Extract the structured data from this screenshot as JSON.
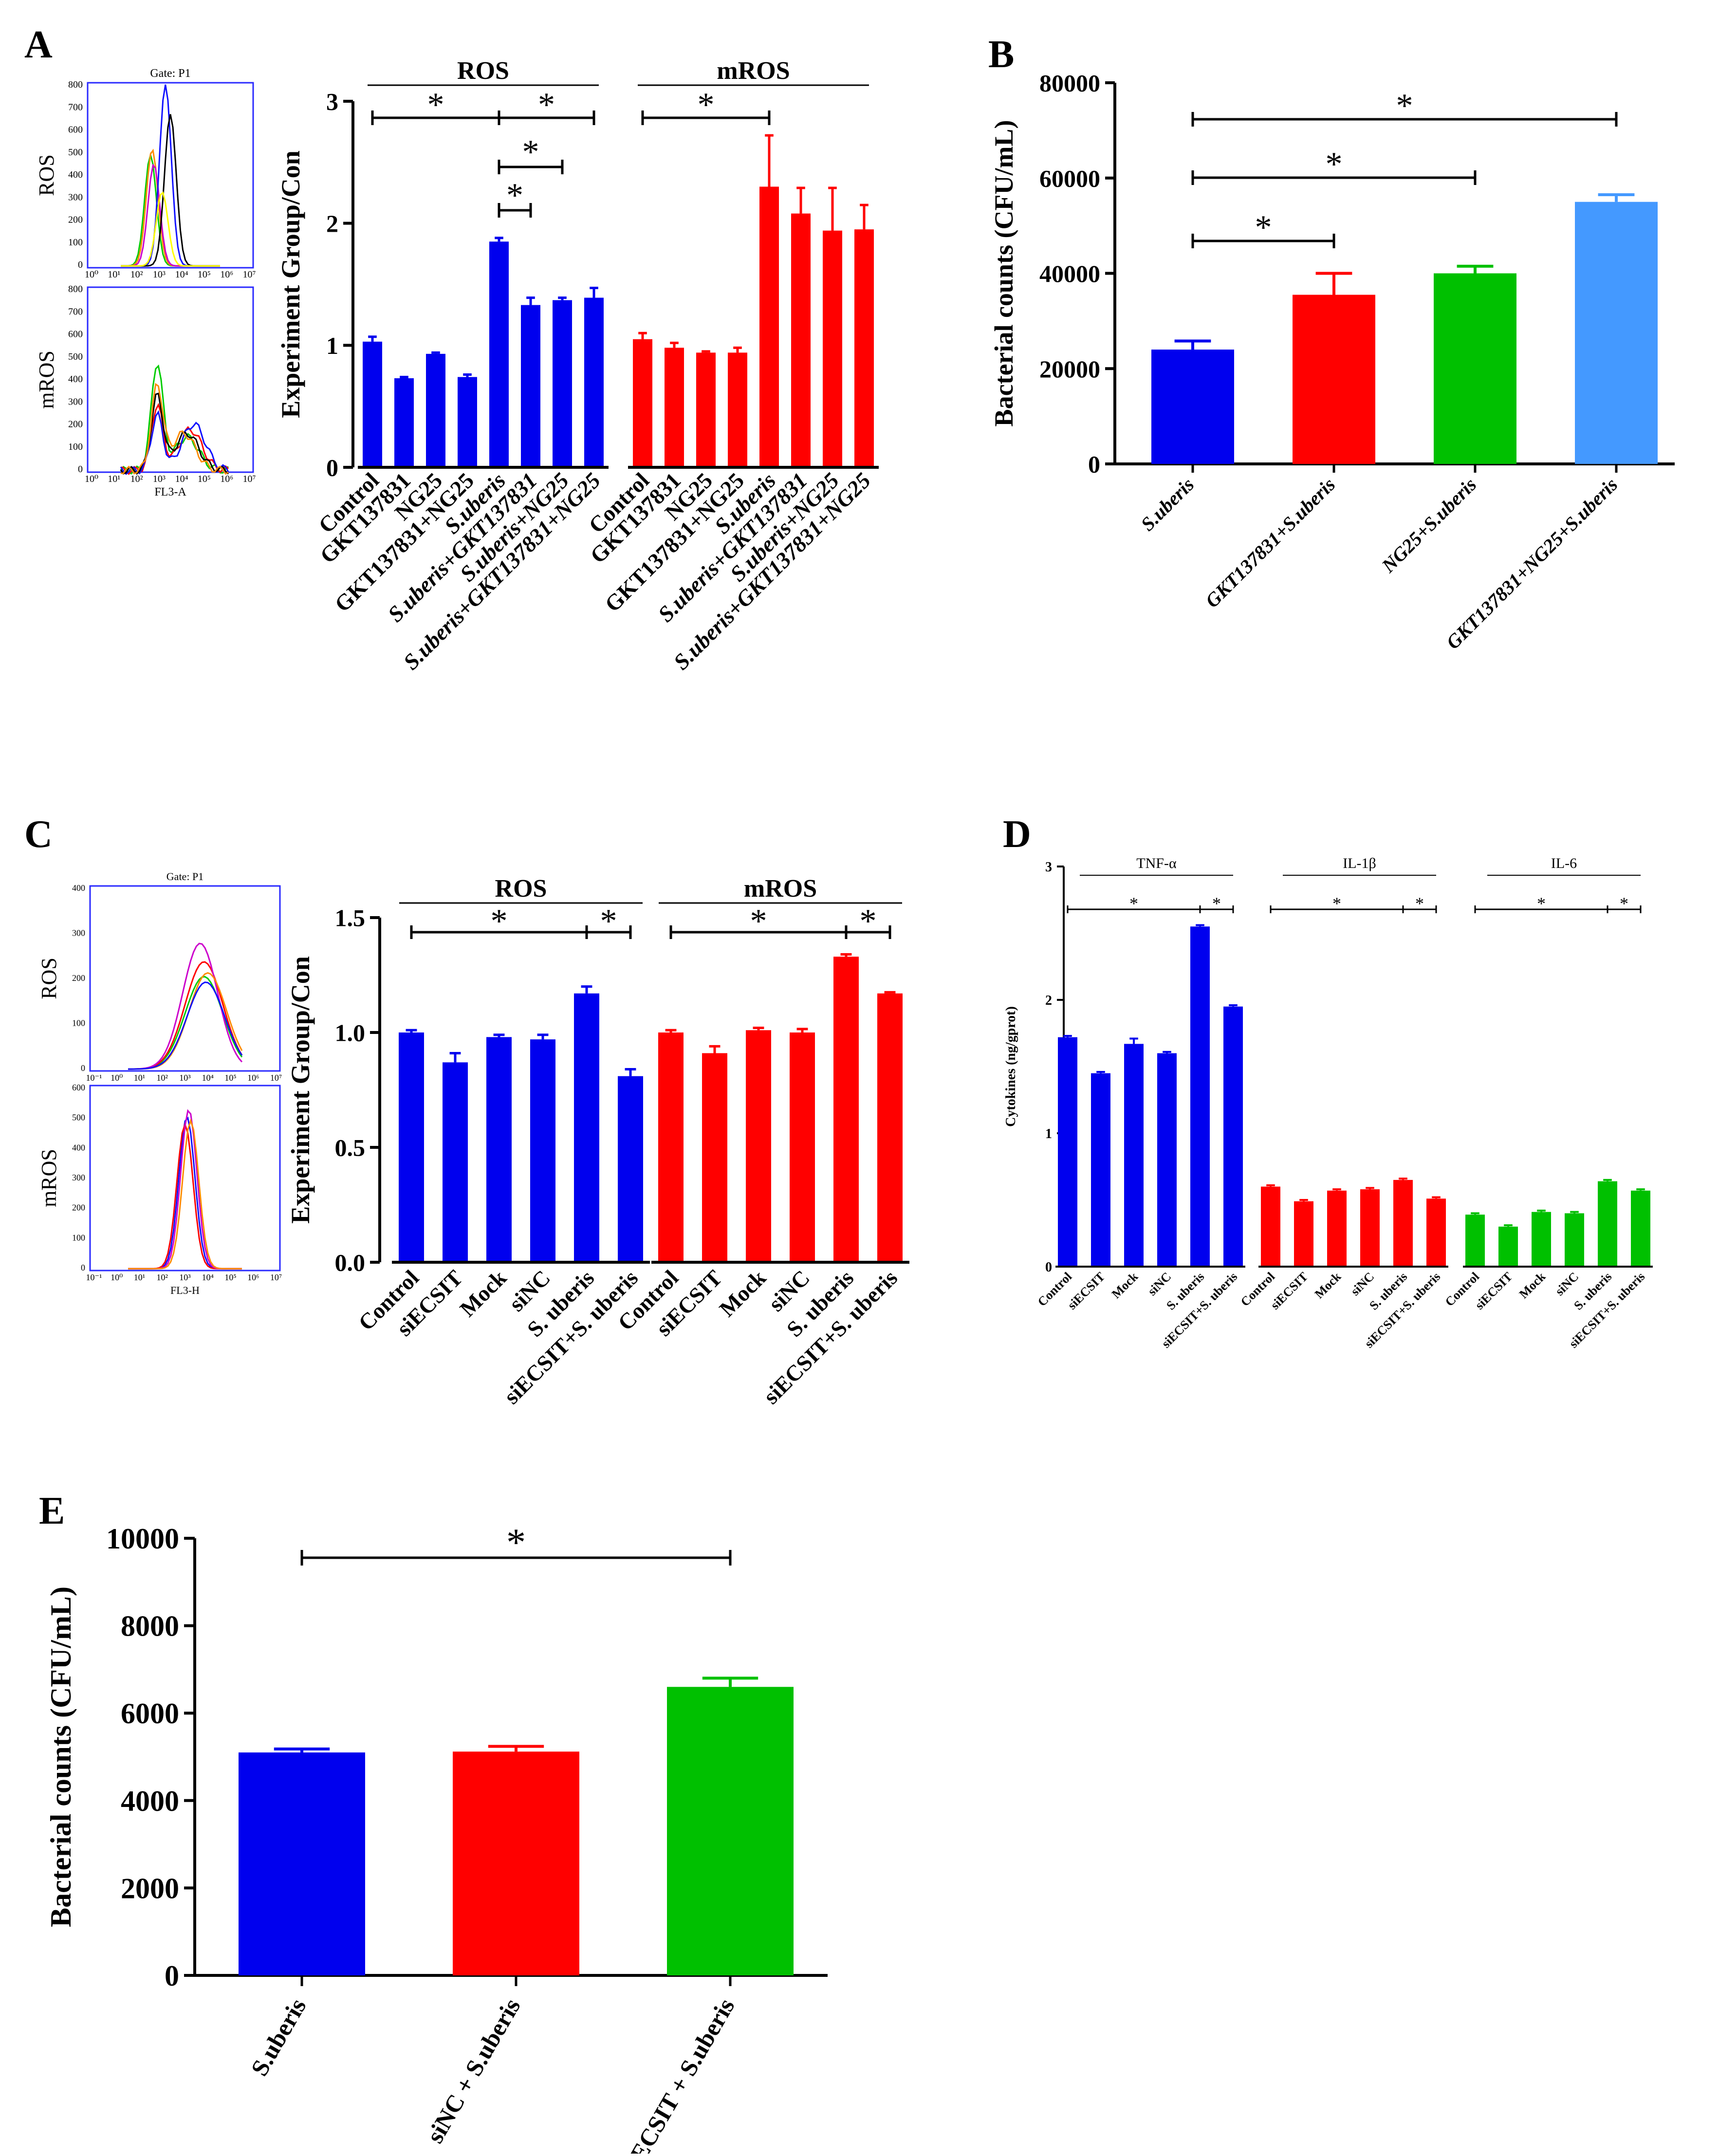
{
  "colors": {
    "blue": "#0000ee",
    "red": "#ff0000",
    "green": "#00c000",
    "lightblue": "#4499ff",
    "black": "#000000"
  },
  "sig": "*",
  "flow": {
    "A": {
      "gate": "Gate: P1",
      "row1": "ROS",
      "row2": "mROS",
      "xlabel": "FL3-A",
      "yticks_top": [
        "800",
        "700",
        "600",
        "500",
        "400",
        "300",
        "200",
        "100",
        "0"
      ],
      "xticks": [
        "10⁰",
        "10¹",
        "10²",
        "10³",
        "10⁴",
        "10⁵",
        "10⁶",
        "10⁷"
      ]
    },
    "C": {
      "gate": "Gate: P1",
      "row1": "ROS",
      "row2": "mROS",
      "xlabel": "FL3-H",
      "yticks_top": [
        "400",
        "300",
        "200",
        "100",
        "0"
      ],
      "yticks_bot": [
        "600",
        "500",
        "400",
        "300",
        "200",
        "100",
        "0"
      ],
      "xticks": [
        "10⁻¹",
        "10⁰",
        "10¹",
        "10²",
        "10³",
        "10⁴",
        "10⁵",
        "10⁶",
        "10⁷"
      ]
    }
  },
  "chart_data": [
    {
      "panel": "A",
      "type": "bar",
      "ylabel": "Experiment Group/Con",
      "ylim": [
        0,
        3
      ],
      "yticks": [
        "0",
        "1",
        "2",
        "3"
      ],
      "group_labels": [
        "ROS",
        "mROS"
      ],
      "categories": [
        "Control",
        "GKT137831",
        "NG25",
        "GKT137831+NG25",
        "S.uberis",
        "S.uberis+GKT137831",
        "S.uberis+NG25",
        "S.uberis+GKT137831+NG25"
      ],
      "series": [
        {
          "color": "blue",
          "values": [
            1.03,
            0.73,
            0.93,
            0.74,
            1.85,
            1.33,
            1.37,
            1.39
          ],
          "errors": [
            0.04,
            0.01,
            0.01,
            0.02,
            0.03,
            0.06,
            0.02,
            0.08
          ]
        },
        {
          "color": "red",
          "values": [
            1.05,
            0.98,
            0.94,
            0.94,
            2.3,
            2.08,
            1.94,
            1.95
          ],
          "errors": [
            0.05,
            0.04,
            0.01,
            0.04,
            0.42,
            0.21,
            0.35,
            0.2
          ]
        }
      ]
    },
    {
      "panel": "B",
      "type": "bar",
      "ylabel": "Bacterial counts (CFU/mL)",
      "ylim": [
        0,
        80000
      ],
      "yticks": [
        "0",
        "20000",
        "40000",
        "60000",
        "80000"
      ],
      "categories": [
        "S.uberis",
        "GKT137831+S.uberis",
        "NG25+S.uberis",
        "GKT137831+NG25+S.uberis"
      ],
      "values": [
        24000,
        35500,
        40000,
        55000
      ],
      "errors": [
        1800,
        4500,
        1500,
        1500
      ],
      "colors": [
        "blue",
        "red",
        "green",
        "lightblue"
      ]
    },
    {
      "panel": "C",
      "type": "bar",
      "ylabel": "Experiment Group/Con",
      "ylim": [
        0,
        1.5
      ],
      "yticks": [
        "0.0",
        "0.5",
        "1.0",
        "1.5"
      ],
      "group_labels": [
        "ROS",
        "mROS"
      ],
      "categories": [
        "Control",
        "siECSIT",
        "Mock",
        "siNC",
        "S. uberis",
        "siECSIT+S. uberis"
      ],
      "series": [
        {
          "color": "blue",
          "values": [
            1.0,
            0.87,
            0.98,
            0.97,
            1.17,
            0.81
          ],
          "errors": [
            0.01,
            0.04,
            0.01,
            0.02,
            0.03,
            0.03
          ]
        },
        {
          "color": "red",
          "values": [
            1.0,
            0.91,
            1.01,
            1.0,
            1.33,
            1.17
          ],
          "errors": [
            0.01,
            0.03,
            0.01,
            0.015,
            0.01,
            0.005
          ]
        }
      ]
    },
    {
      "panel": "D",
      "type": "bar",
      "ylabel": "Cytokines  (ng/gprot)",
      "ylim": [
        0,
        3
      ],
      "yticks": [
        "0",
        "1",
        "2",
        "3"
      ],
      "group_labels": [
        "TNF-α",
        "IL-1β",
        "IL-6"
      ],
      "categories": [
        "Control",
        "siECSIT",
        "Mock",
        "siNC",
        "S. uberis",
        "siECSIT+S. uberis"
      ],
      "series": [
        {
          "color": "blue",
          "values": [
            1.72,
            1.45,
            1.67,
            1.6,
            2.55,
            1.95
          ],
          "errors": [
            0.01,
            0.01,
            0.04,
            0.01,
            0.01,
            0.01
          ]
        },
        {
          "color": "red",
          "values": [
            0.6,
            0.49,
            0.57,
            0.58,
            0.65,
            0.51
          ],
          "errors": [
            0.01,
            0.01,
            0.01,
            0.01,
            0.01,
            0.01
          ]
        },
        {
          "color": "green",
          "values": [
            0.39,
            0.3,
            0.41,
            0.4,
            0.64,
            0.57
          ],
          "errors": [
            0.01,
            0.01,
            0.01,
            0.01,
            0.01,
            0.01
          ]
        }
      ]
    },
    {
      "panel": "E",
      "type": "bar",
      "ylabel": "Bacterial counts (CFU/mL)",
      "ylim": [
        0,
        10000
      ],
      "yticks": [
        "0",
        "2000",
        "4000",
        "6000",
        "8000",
        "10000"
      ],
      "categories": [
        "S.uberis",
        "siNC + S.uberis",
        "siECSIT + S.uberis"
      ],
      "values": [
        5100,
        5120,
        6600
      ],
      "errors": [
        80,
        120,
        200
      ],
      "colors": [
        "blue",
        "red",
        "green"
      ]
    }
  ]
}
